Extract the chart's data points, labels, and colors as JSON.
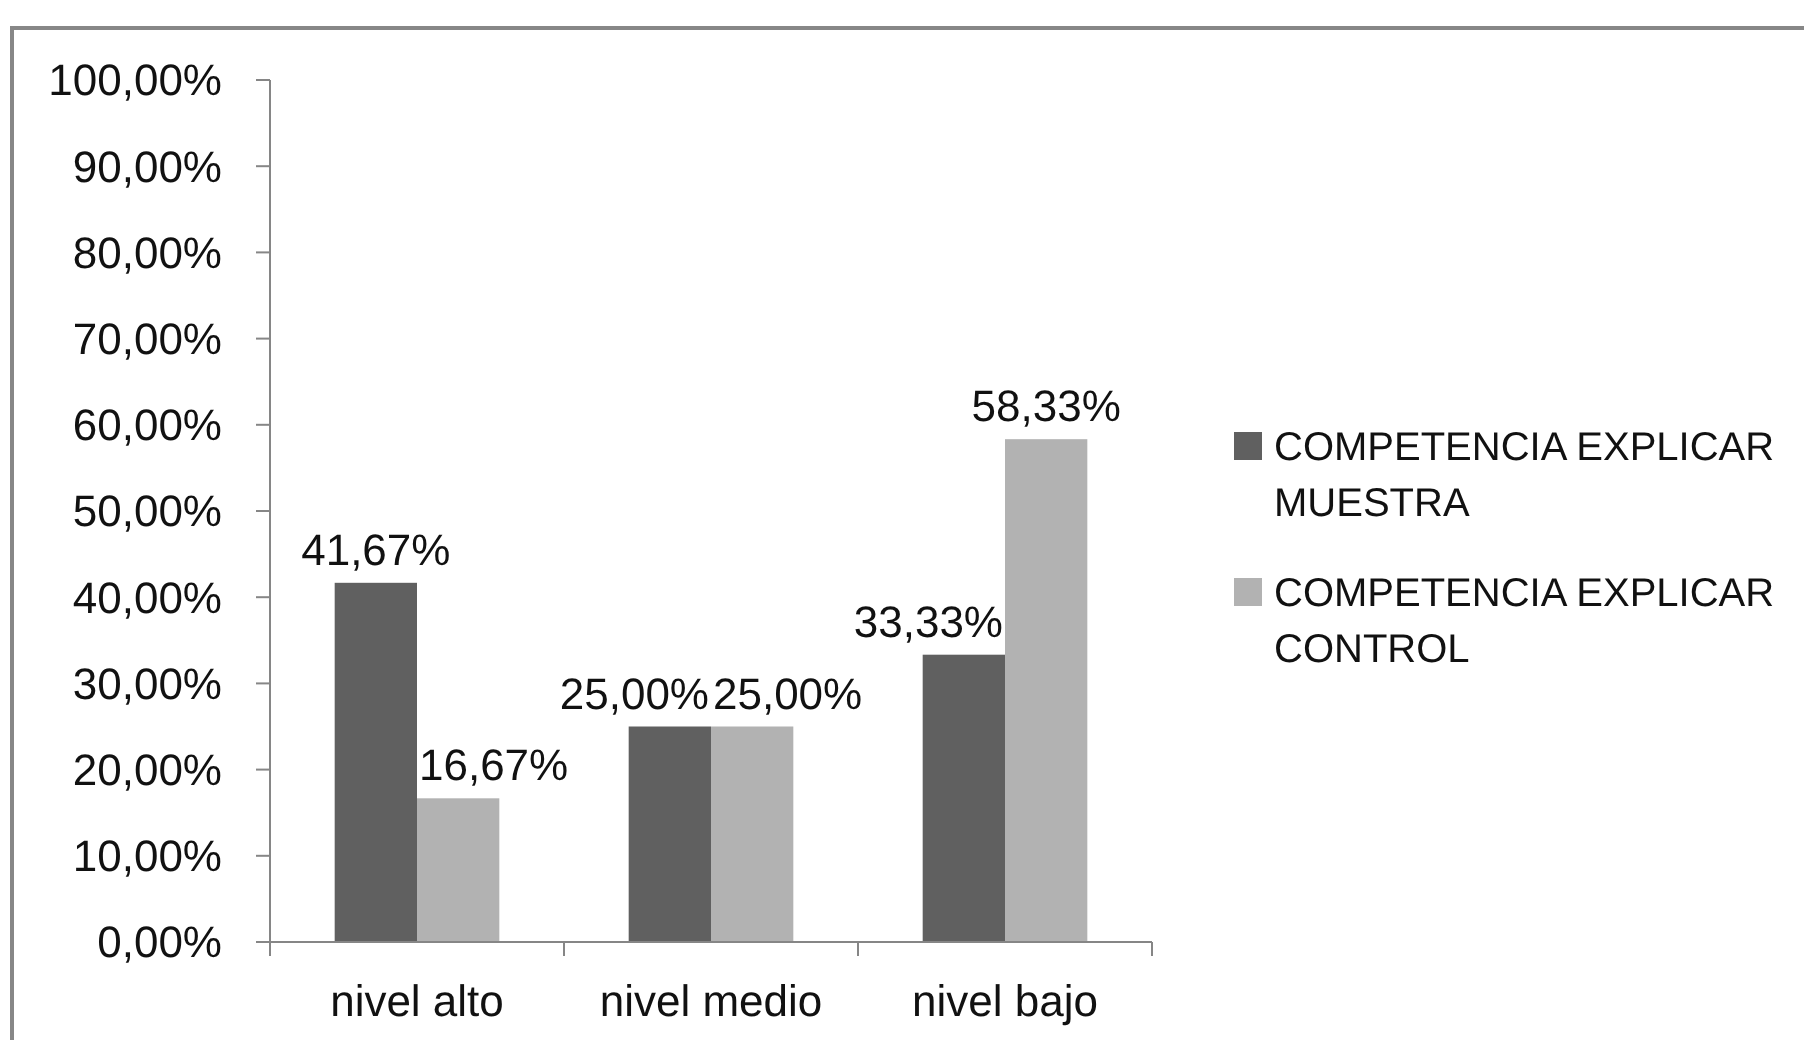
{
  "chart_data": {
    "type": "bar",
    "categories": [
      "nivel alto",
      "nivel medio",
      "nivel bajo"
    ],
    "series": [
      {
        "name": "COMPETENCIA EXPLICAR MUESTRA",
        "color": "#606060",
        "values": [
          41.67,
          25.0,
          33.33
        ],
        "value_labels": [
          "41,67%",
          "25,00%",
          "33,33%"
        ]
      },
      {
        "name": "COMPETENCIA EXPLICAR CONTROL",
        "color": "#b2b2b2",
        "values": [
          16.67,
          25.0,
          58.33
        ],
        "value_labels": [
          "16,67%",
          "25,00%",
          "58,33%"
        ]
      }
    ],
    "ylim": [
      0,
      100
    ],
    "yticks": [
      {
        "value": 0,
        "label": "0,00%"
      },
      {
        "value": 10,
        "label": "10,00%"
      },
      {
        "value": 20,
        "label": "20,00%"
      },
      {
        "value": 30,
        "label": "30,00%"
      },
      {
        "value": 40,
        "label": "40,00%"
      },
      {
        "value": 50,
        "label": "50,00%"
      },
      {
        "value": 60,
        "label": "60,00%"
      },
      {
        "value": 70,
        "label": "70,00%"
      },
      {
        "value": 80,
        "label": "80,00%"
      },
      {
        "value": 90,
        "label": "90,00%"
      },
      {
        "value": 100,
        "label": "100,00%"
      }
    ],
    "grid": false,
    "legend": "right"
  }
}
